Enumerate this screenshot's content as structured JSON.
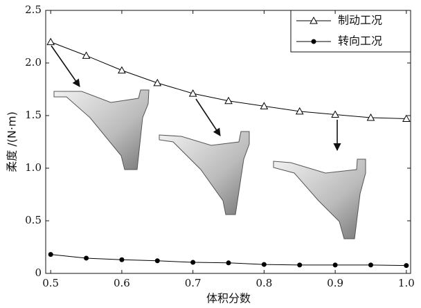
{
  "chart_data": {
    "type": "line",
    "x_label": "体积分数",
    "y_label": "柔度 /(N·m)",
    "x": [
      0.5,
      0.55,
      0.6,
      0.65,
      0.7,
      0.75,
      0.8,
      0.85,
      0.9,
      0.95,
      1.0
    ],
    "series": [
      {
        "name": "制动工况",
        "color": "#000000",
        "marker": "triangle",
        "values": [
          2.2,
          2.07,
          1.93,
          1.81,
          1.71,
          1.64,
          1.59,
          1.54,
          1.51,
          1.48,
          1.47
        ]
      },
      {
        "name": "转向工况",
        "color": "#000000",
        "marker": "circle",
        "values": [
          0.18,
          0.145,
          0.13,
          0.12,
          0.105,
          0.1,
          0.085,
          0.08,
          0.08,
          0.08,
          0.075
        ]
      }
    ],
    "xlim": [
      0.493,
      1.006
    ],
    "ylim": [
      0,
      2.5
    ],
    "xticks": [
      0.5,
      0.6,
      0.7,
      0.8,
      0.9,
      {
        "value": 1.0,
        "label": "1.0"
      }
    ],
    "yticks": [
      0,
      0.5,
      {
        "value": 1.0,
        "label": "1.0"
      },
      1.5,
      {
        "value": 2.0,
        "label": "2.0"
      },
      2.5
    ],
    "legend": "upper right"
  }
}
